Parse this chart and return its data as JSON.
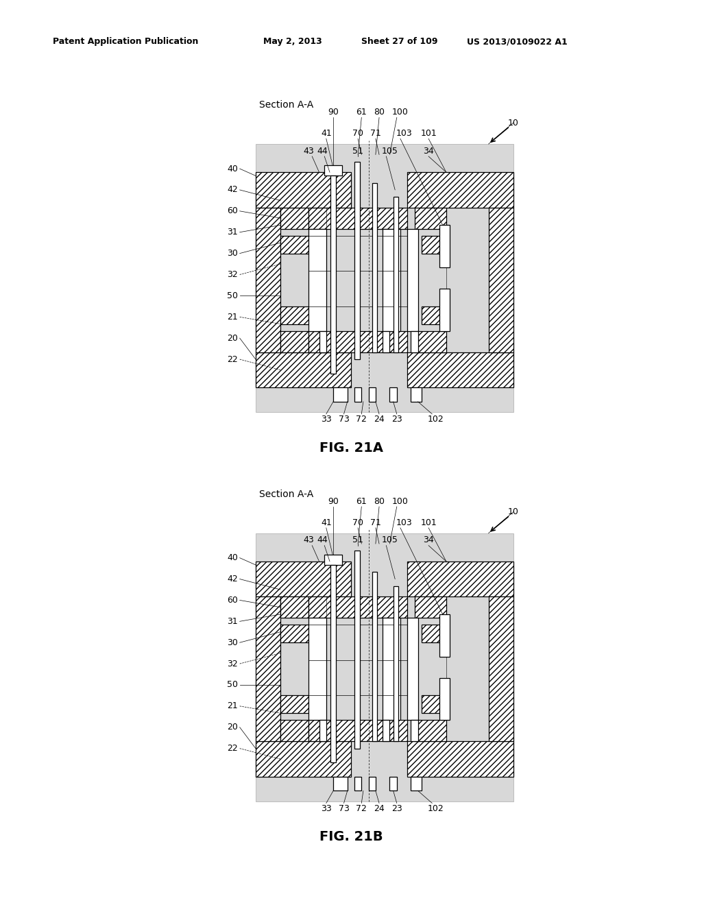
{
  "background_color": "#ffffff",
  "diagram_bg": "#d8d8d8",
  "header_text": "Patent Application Publication",
  "header_date": "May 2, 2013",
  "header_sheet": "Sheet 27 of 109",
  "header_patent": "US 2013/0109022 A1",
  "fig1_title": "FIG. 21A",
  "fig2_title": "FIG. 21B",
  "section_label": "Section A-A",
  "label_fs": 9,
  "caption_fs": 14,
  "header_fs": 9
}
